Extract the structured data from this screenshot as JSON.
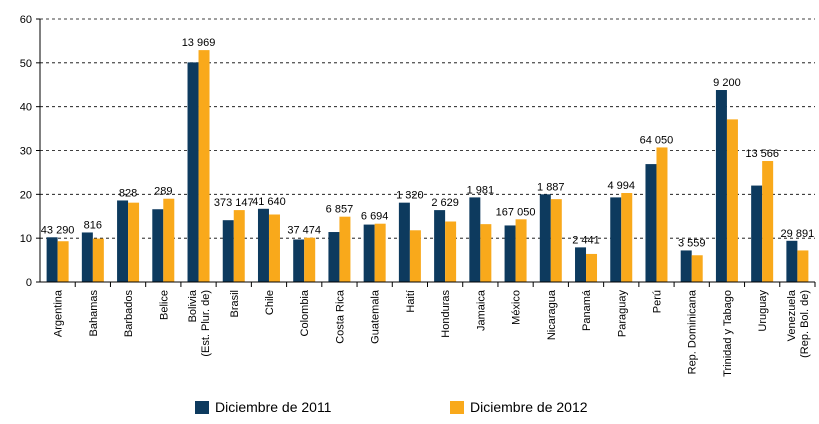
{
  "chart_data": {
    "type": "bar",
    "categories": [
      "Argentina",
      "Bahamas",
      "Barbados",
      "Belice",
      "Bolivia\n(Est. Plur. de)",
      "Brasil",
      "Chile",
      "Colombia",
      "Costa Rica",
      "Guatemala",
      "Haití",
      "Honduras",
      "Jamaica",
      "México",
      "Nicaragua",
      "Panamá",
      "Paraguay",
      "Perú",
      "Rep. Dominicana",
      "Trinidad y Tabago",
      "Uruguay",
      "Venezuela\n(Rep. Bol. de)"
    ],
    "series": [
      {
        "name": "Diciembre de 2011",
        "color": "#0d3a5e",
        "values": [
          10.2,
          11.3,
          18.6,
          16.6,
          50.1,
          14.1,
          16.7,
          9.7,
          11.4,
          13.1,
          18.1,
          16.4,
          19.3,
          12.9,
          20.0,
          7.9,
          19.3,
          26.9,
          7.2,
          43.8,
          22.0,
          9.4
        ]
      },
      {
        "name": "Diciembre de 2012",
        "color": "#f9a91b",
        "values": [
          9.3,
          9.9,
          18.1,
          19.0,
          52.9,
          16.4,
          15.4,
          10.1,
          14.9,
          13.3,
          11.8,
          13.8,
          13.2,
          14.3,
          18.9,
          6.4,
          20.3,
          30.7,
          6.1,
          37.1,
          27.6,
          7.2
        ]
      }
    ],
    "annotations": [
      "43 290",
      "816",
      "828",
      "289",
      "13 969",
      "373 147",
      "41 640",
      "37 474",
      "6 857",
      "6 694",
      "1 320",
      "2 629",
      "1 981",
      "167 050",
      "1 887",
      "2 441",
      "4 994",
      "64 050",
      "3 559",
      "9 200",
      "13 566",
      "29 891"
    ],
    "ylim": [
      0,
      60
    ],
    "yticks": [
      0,
      10,
      20,
      30,
      40,
      50,
      60
    ],
    "grid": true
  }
}
